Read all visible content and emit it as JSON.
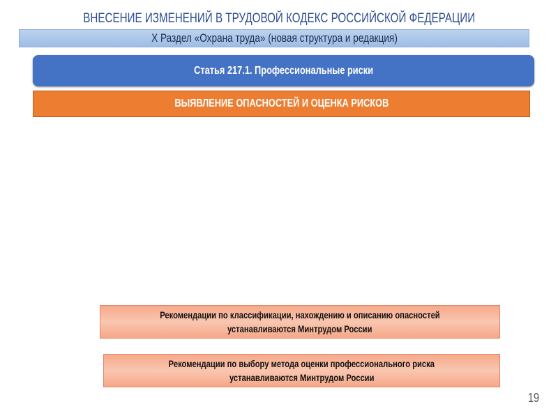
{
  "slide": {
    "title": "ВНЕСЕНИЕ ИЗМЕНЕНИЙ В ТРУДОВОЙ КОДЕКС РОССИЙСКОЙ ФЕДЕРАЦИИ",
    "section": "X Раздел «Охрана труда» (новая структура и редакция)",
    "article": "Статья 217.1. Профессиональные риски",
    "hazard_heading": "ВЫЯВЛЕНИЕ ОПАСНОСТЕЙ И ОЦЕНКА РИСКОВ",
    "recommendations": [
      {
        "line1": "Рекомендации по классификации, нахождению и описанию опасностей",
        "line2": "устанавливаются Минтрудом России"
      },
      {
        "line1": "Рекомендации по выбору метода оценки профессионального риска",
        "line2": "устанавливаются Минтрудом России"
      }
    ],
    "page_number": "19"
  },
  "colors": {
    "title": "#2e4d8f",
    "article_bg": "#4472c4",
    "hazard_bg": "#ed7d31",
    "recommendation_bg": "#f9c6b0"
  }
}
